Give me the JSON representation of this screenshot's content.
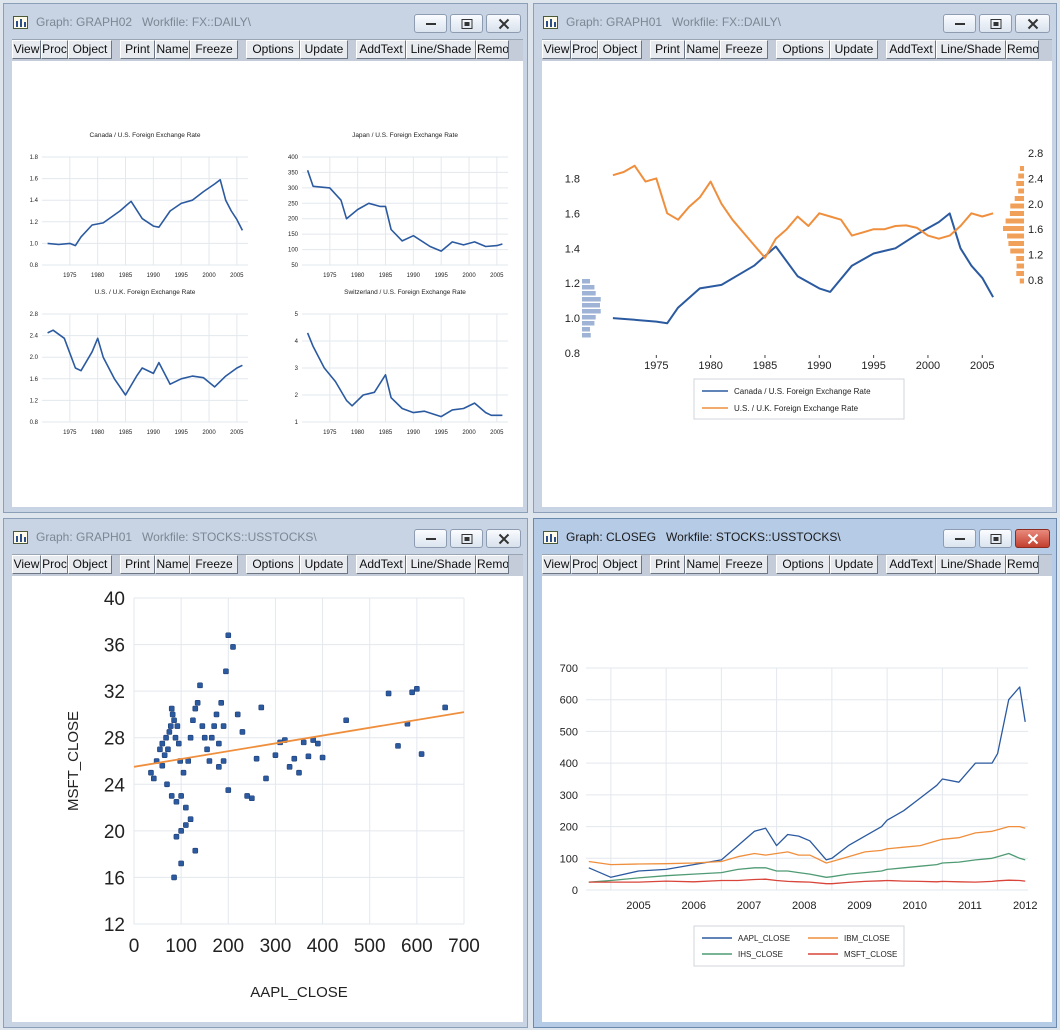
{
  "toolbar_labels": [
    "View",
    "Proc",
    "Object",
    "Print",
    "Name",
    "Freeze",
    "Options",
    "Update",
    "AddText",
    "Line/Shade",
    "Remo"
  ],
  "windows": {
    "w1": {
      "title": "Graph: GRAPH02",
      "workfile": "Workfile: FX::DAILY\\"
    },
    "w2": {
      "title": "Graph: GRAPH01",
      "workfile": "Workfile: FX::DAILY\\"
    },
    "w3": {
      "title": "Graph: GRAPH01",
      "workfile": "Workfile: STOCKS::USSTOCKS\\"
    },
    "w4": {
      "title": "Graph: CLOSEG",
      "workfile": "Workfile: STOCKS::USSTOCKS\\"
    }
  },
  "colors": {
    "blue": "#2b5aa0",
    "orange": "#ef8f3d",
    "green": "#4f9b74",
    "red": "#d9453a",
    "grid": "#e3e8ee",
    "axis": "#222222"
  },
  "chart_data": [
    {
      "window": "w1",
      "type": "line",
      "subcharts": [
        {
          "title": "Canada / U.S. Foreign Exchange Rate",
          "x_ticks": [
            "1975",
            "1980",
            "1985",
            "1990",
            "1995",
            "2000",
            "2005"
          ],
          "y_ticks": [
            "0.8",
            "1.0",
            "1.2",
            "1.4",
            "1.6",
            "1.8"
          ],
          "ylim": [
            0.8,
            1.8
          ],
          "x": [
            1971,
            1973,
            1975,
            1976,
            1977,
            1979,
            1981,
            1984,
            1986,
            1988,
            1990,
            1991,
            1993,
            1995,
            1997,
            1999,
            2001,
            2002,
            2003,
            2004,
            2005,
            2006
          ],
          "values": [
            1.0,
            0.99,
            1.0,
            0.98,
            1.06,
            1.17,
            1.19,
            1.3,
            1.39,
            1.23,
            1.16,
            1.15,
            1.3,
            1.37,
            1.4,
            1.48,
            1.55,
            1.59,
            1.4,
            1.3,
            1.22,
            1.12
          ]
        },
        {
          "title": "Japan / U.S. Foreign Exchange Rate",
          "x_ticks": [
            "1975",
            "1980",
            "1985",
            "1990",
            "1995",
            "2000",
            "2005"
          ],
          "y_ticks": [
            "50",
            "100",
            "150",
            "200",
            "250",
            "300",
            "350",
            "400"
          ],
          "ylim": [
            50,
            400
          ],
          "x": [
            1971,
            1972,
            1975,
            1977,
            1978,
            1980,
            1982,
            1984,
            1985,
            1986,
            1988,
            1990,
            1993,
            1995,
            1997,
            1999,
            2001,
            2003,
            2005,
            2006
          ],
          "values": [
            357,
            305,
            300,
            260,
            200,
            230,
            250,
            240,
            240,
            165,
            128,
            145,
            110,
            95,
            125,
            115,
            125,
            110,
            113,
            118
          ]
        },
        {
          "title": "U.S. / U.K. Foreign Exchange Rate",
          "x_ticks": [
            "1975",
            "1980",
            "1985",
            "1990",
            "1995",
            "2000",
            "2005"
          ],
          "y_ticks": [
            "0.8",
            "1.2",
            "1.6",
            "2.0",
            "2.4",
            "2.8"
          ],
          "ylim": [
            0.8,
            2.8
          ],
          "x": [
            1971,
            1972,
            1974,
            1976,
            1977,
            1979,
            1980,
            1981,
            1983,
            1985,
            1987,
            1988,
            1990,
            1991,
            1993,
            1995,
            1997,
            1999,
            2001,
            2003,
            2005,
            2006
          ],
          "values": [
            2.45,
            2.5,
            2.35,
            1.8,
            1.75,
            2.1,
            2.35,
            2.0,
            1.6,
            1.3,
            1.65,
            1.8,
            1.7,
            1.9,
            1.5,
            1.6,
            1.65,
            1.62,
            1.45,
            1.65,
            1.8,
            1.85
          ]
        },
        {
          "title": "Switzerland / U.S. Foreign Exchange Rate",
          "x_ticks": [
            "1975",
            "1980",
            "1985",
            "1990",
            "1995",
            "2000",
            "2005"
          ],
          "y_ticks": [
            "1",
            "2",
            "3",
            "4",
            "5"
          ],
          "ylim": [
            1,
            5
          ],
          "x": [
            1971,
            1972,
            1974,
            1976,
            1978,
            1979,
            1981,
            1983,
            1985,
            1986,
            1988,
            1990,
            1992,
            1995,
            1997,
            1999,
            2001,
            2003,
            2004,
            2006
          ],
          "values": [
            4.3,
            3.8,
            3.0,
            2.5,
            1.8,
            1.6,
            2.0,
            2.1,
            2.75,
            1.9,
            1.5,
            1.35,
            1.4,
            1.2,
            1.45,
            1.5,
            1.7,
            1.35,
            1.25,
            1.25
          ]
        }
      ]
    },
    {
      "window": "w2",
      "type": "line",
      "x_ticks": [
        "1975",
        "1980",
        "1985",
        "1990",
        "1995",
        "2000",
        "2005"
      ],
      "y_ticks_left": [
        "0.8",
        "1.0",
        "1.2",
        "1.4",
        "1.6",
        "1.8"
      ],
      "y_ticks_right": [
        "0.8",
        "1.2",
        "1.6",
        "2.0",
        "2.4",
        "2.8"
      ],
      "series": [
        {
          "name": "Canada / U.S. Foreign Exchange Rate",
          "color": "blue",
          "axis": "left",
          "x": [
            1971,
            1973,
            1975,
            1976,
            1977,
            1979,
            1981,
            1984,
            1986,
            1988,
            1990,
            1991,
            1993,
            1995,
            1997,
            1999,
            2001,
            2002,
            2003,
            2004,
            2005,
            2006
          ],
          "values": [
            1.0,
            0.99,
            0.98,
            0.97,
            1.06,
            1.17,
            1.19,
            1.3,
            1.41,
            1.24,
            1.17,
            1.15,
            1.3,
            1.37,
            1.4,
            1.48,
            1.55,
            1.6,
            1.4,
            1.3,
            1.23,
            1.12
          ]
        },
        {
          "name": "U.S. / U.K. Foreign Exchange Rate",
          "color": "orange",
          "axis": "right",
          "x": [
            1971,
            1972,
            1973,
            1974,
            1975,
            1976,
            1977,
            1978,
            1979,
            1980,
            1981,
            1982,
            1983,
            1984,
            1985,
            1986,
            1987,
            1988,
            1989,
            1990,
            1991,
            1992,
            1993,
            1994,
            1995,
            1996,
            1997,
            1998,
            1999,
            2000,
            2001,
            2002,
            2003,
            2004,
            2005,
            2006
          ],
          "values": [
            2.45,
            2.5,
            2.6,
            2.35,
            2.4,
            1.85,
            1.75,
            1.95,
            2.1,
            2.35,
            2.0,
            1.75,
            1.55,
            1.35,
            1.15,
            1.45,
            1.6,
            1.8,
            1.65,
            1.85,
            1.8,
            1.75,
            1.5,
            1.55,
            1.6,
            1.6,
            1.65,
            1.66,
            1.62,
            1.5,
            1.45,
            1.5,
            1.65,
            1.85,
            1.8,
            1.85
          ]
        }
      ]
    },
    {
      "window": "w3",
      "type": "scatter",
      "xlabel": "AAPL_CLOSE",
      "ylabel": "MSFT_CLOSE",
      "x_ticks": [
        "0",
        "100",
        "200",
        "300",
        "400",
        "500",
        "600",
        "700"
      ],
      "xlim": [
        0,
        700
      ],
      "y_ticks": [
        "12",
        "16",
        "20",
        "24",
        "28",
        "32",
        "36",
        "40"
      ],
      "ylim": [
        12,
        40
      ],
      "fit_line": {
        "x": [
          0,
          700
        ],
        "y": [
          25.5,
          30.2
        ]
      },
      "x": [
        36,
        42,
        48,
        55,
        60,
        65,
        68,
        72,
        75,
        78,
        80,
        82,
        85,
        88,
        92,
        95,
        98,
        100,
        105,
        110,
        115,
        120,
        125,
        130,
        135,
        140,
        145,
        150,
        155,
        160,
        165,
        170,
        175,
        180,
        185,
        190,
        195,
        200,
        210,
        220,
        230,
        240,
        250,
        260,
        270,
        280,
        300,
        310,
        320,
        330,
        340,
        350,
        360,
        370,
        380,
        390,
        400,
        450,
        540,
        560,
        580,
        590,
        600,
        610,
        660,
        85,
        90,
        100,
        110,
        120,
        130,
        60,
        70,
        80,
        90,
        100,
        180,
        190,
        200
      ],
      "y": [
        25,
        24.5,
        26,
        27,
        27.5,
        26.5,
        28,
        27,
        28.5,
        29,
        30.5,
        30,
        29.5,
        28,
        29,
        27.5,
        26,
        23,
        25,
        22,
        26,
        28,
        29.5,
        30.5,
        31,
        32.5,
        29,
        28,
        27,
        26,
        28,
        29,
        30,
        27.5,
        31,
        29,
        33.7,
        36.8,
        35.8,
        30,
        28.5,
        23,
        22.8,
        26.2,
        30.6,
        24.5,
        26.5,
        27.6,
        27.8,
        25.5,
        26.2,
        25,
        27.6,
        26.4,
        27.8,
        27.5,
        26.3,
        29.5,
        31.8,
        27.3,
        29.2,
        31.9,
        32.2,
        26.6,
        30.6,
        16,
        19.5,
        20,
        20.5,
        21,
        18.3,
        25.6,
        24,
        23,
        22.5,
        17.2,
        25.5,
        26,
        23.5
      ]
    },
    {
      "window": "w4",
      "type": "line",
      "x_ticks": [
        "2005",
        "2006",
        "2007",
        "2008",
        "2009",
        "2010",
        "2011",
        "2012"
      ],
      "y_ticks": [
        "0",
        "100",
        "200",
        "300",
        "400",
        "500",
        "600",
        "700"
      ],
      "ylim": [
        0,
        700
      ],
      "x": [
        2004.6,
        2005.0,
        2005.5,
        2006.0,
        2006.5,
        2007.0,
        2007.3,
        2007.6,
        2007.8,
        2008.0,
        2008.2,
        2008.4,
        2008.6,
        2008.9,
        2009.0,
        2009.3,
        2009.6,
        2009.9,
        2010.0,
        2010.3,
        2010.6,
        2010.9,
        2011.0,
        2011.3,
        2011.6,
        2011.9,
        2012.0,
        2012.2,
        2012.4,
        2012.5
      ],
      "series": [
        {
          "name": "AAPL_CLOSE",
          "color": "blue",
          "values": [
            70,
            40,
            60,
            65,
            80,
            95,
            140,
            185,
            195,
            140,
            175,
            170,
            155,
            95,
            100,
            140,
            170,
            200,
            220,
            250,
            290,
            330,
            350,
            340,
            400,
            400,
            430,
            600,
            640,
            530
          ]
        },
        {
          "name": "IBM_CLOSE",
          "color": "orange",
          "values": [
            90,
            80,
            82,
            83,
            85,
            90,
            105,
            115,
            110,
            115,
            120,
            110,
            110,
            85,
            90,
            105,
            120,
            125,
            130,
            135,
            140,
            155,
            160,
            165,
            180,
            185,
            190,
            200,
            200,
            195
          ]
        },
        {
          "name": "IHS_CLOSE",
          "color": "green",
          "values": [
            25,
            30,
            38,
            45,
            50,
            55,
            65,
            70,
            70,
            60,
            60,
            55,
            50,
            40,
            42,
            50,
            55,
            60,
            65,
            70,
            75,
            80,
            85,
            88,
            95,
            100,
            105,
            115,
            100,
            95
          ]
        },
        {
          "name": "MSFT_CLOSE",
          "color": "red",
          "values": [
            25,
            25,
            25,
            28,
            26,
            30,
            30,
            33,
            34,
            30,
            27,
            26,
            25,
            20,
            20,
            24,
            27,
            29,
            30,
            28,
            27,
            26,
            27,
            26,
            25,
            27,
            29,
            31,
            30,
            28
          ]
        }
      ]
    }
  ]
}
